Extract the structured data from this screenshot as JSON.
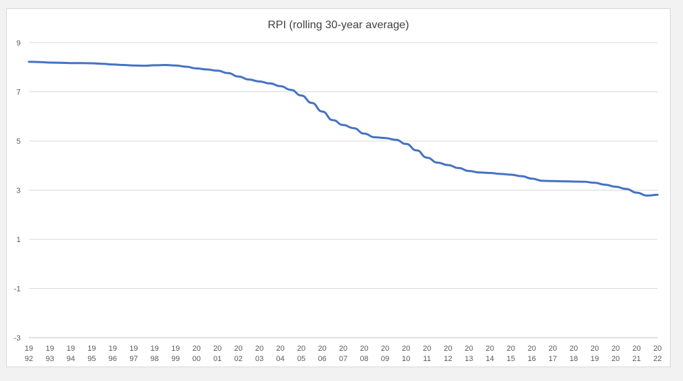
{
  "chart_data": {
    "type": "line",
    "title": "RPI (rolling 30-year average)",
    "xlabel": "",
    "ylabel": "",
    "ylim": [
      -3,
      9
    ],
    "yticks": [
      -3,
      -1,
      1,
      3,
      5,
      7,
      9
    ],
    "xlim": [
      1992,
      2022
    ],
    "grid": true,
    "legend": "none",
    "x_tick_labels": [
      {
        "value": 1992,
        "top": "19",
        "bottom": "92"
      },
      {
        "value": 1993,
        "top": "19",
        "bottom": "93"
      },
      {
        "value": 1994,
        "top": "19",
        "bottom": "94"
      },
      {
        "value": 1995,
        "top": "19",
        "bottom": "95"
      },
      {
        "value": 1996,
        "top": "19",
        "bottom": "96"
      },
      {
        "value": 1997,
        "top": "19",
        "bottom": "97"
      },
      {
        "value": 1998,
        "top": "19",
        "bottom": "98"
      },
      {
        "value": 1999,
        "top": "19",
        "bottom": "99"
      },
      {
        "value": 2000,
        "top": "20",
        "bottom": "00"
      },
      {
        "value": 2001,
        "top": "20",
        "bottom": "01"
      },
      {
        "value": 2002,
        "top": "20",
        "bottom": "02"
      },
      {
        "value": 2003,
        "top": "20",
        "bottom": "03"
      },
      {
        "value": 2004,
        "top": "20",
        "bottom": "04"
      },
      {
        "value": 2005,
        "top": "20",
        "bottom": "05"
      },
      {
        "value": 2006,
        "top": "20",
        "bottom": "06"
      },
      {
        "value": 2007,
        "top": "20",
        "bottom": "07"
      },
      {
        "value": 2008,
        "top": "20",
        "bottom": "08"
      },
      {
        "value": 2009,
        "top": "20",
        "bottom": "09"
      },
      {
        "value": 2010,
        "top": "20",
        "bottom": "10"
      },
      {
        "value": 2011,
        "top": "20",
        "bottom": "11"
      },
      {
        "value": 2012,
        "top": "20",
        "bottom": "12"
      },
      {
        "value": 2013,
        "top": "20",
        "bottom": "13"
      },
      {
        "value": 2014,
        "top": "20",
        "bottom": "14"
      },
      {
        "value": 2015,
        "top": "20",
        "bottom": "15"
      },
      {
        "value": 2016,
        "top": "20",
        "bottom": "16"
      },
      {
        "value": 2017,
        "top": "20",
        "bottom": "17"
      },
      {
        "value": 2018,
        "top": "20",
        "bottom": "18"
      },
      {
        "value": 2019,
        "top": "20",
        "bottom": "19"
      },
      {
        "value": 2020,
        "top": "20",
        "bottom": "20"
      },
      {
        "value": 2021,
        "top": "20",
        "bottom": "21"
      },
      {
        "value": 2022,
        "top": "20",
        "bottom": "22"
      }
    ],
    "series": [
      {
        "color": "#4472c4",
        "points": [
          [
            1992.0,
            8.22
          ],
          [
            1992.5,
            8.21
          ],
          [
            1993.0,
            8.19
          ],
          [
            1993.5,
            8.18
          ],
          [
            1994.0,
            8.17
          ],
          [
            1994.5,
            8.17
          ],
          [
            1995.0,
            8.16
          ],
          [
            1995.5,
            8.14
          ],
          [
            1996.0,
            8.11
          ],
          [
            1996.5,
            8.09
          ],
          [
            1997.0,
            8.07
          ],
          [
            1997.5,
            8.06
          ],
          [
            1998.0,
            8.08
          ],
          [
            1998.5,
            8.09
          ],
          [
            1999.0,
            8.07
          ],
          [
            1999.5,
            8.02
          ],
          [
            2000.0,
            7.95
          ],
          [
            2000.5,
            7.91
          ],
          [
            2001.0,
            7.86
          ],
          [
            2001.5,
            7.76
          ],
          [
            2002.0,
            7.62
          ],
          [
            2002.5,
            7.5
          ],
          [
            2003.0,
            7.42
          ],
          [
            2003.5,
            7.34
          ],
          [
            2004.0,
            7.23
          ],
          [
            2004.5,
            7.08
          ],
          [
            2005.0,
            6.85
          ],
          [
            2005.5,
            6.55
          ],
          [
            2006.0,
            6.2
          ],
          [
            2006.5,
            5.85
          ],
          [
            2007.0,
            5.65
          ],
          [
            2007.5,
            5.52
          ],
          [
            2008.0,
            5.3
          ],
          [
            2008.5,
            5.15
          ],
          [
            2009.0,
            5.12
          ],
          [
            2009.5,
            5.05
          ],
          [
            2010.0,
            4.88
          ],
          [
            2010.5,
            4.62
          ],
          [
            2011.0,
            4.32
          ],
          [
            2011.5,
            4.12
          ],
          [
            2012.0,
            4.02
          ],
          [
            2012.5,
            3.9
          ],
          [
            2013.0,
            3.78
          ],
          [
            2013.5,
            3.72
          ],
          [
            2014.0,
            3.7
          ],
          [
            2014.5,
            3.66
          ],
          [
            2015.0,
            3.63
          ],
          [
            2015.5,
            3.57
          ],
          [
            2016.0,
            3.47
          ],
          [
            2016.5,
            3.38
          ],
          [
            2017.0,
            3.37
          ],
          [
            2017.5,
            3.36
          ],
          [
            2018.0,
            3.35
          ],
          [
            2018.5,
            3.34
          ],
          [
            2019.0,
            3.3
          ],
          [
            2019.5,
            3.22
          ],
          [
            2020.0,
            3.14
          ],
          [
            2020.5,
            3.05
          ],
          [
            2021.0,
            2.9
          ],
          [
            2021.5,
            2.78
          ],
          [
            2022.0,
            2.81
          ]
        ]
      }
    ]
  }
}
